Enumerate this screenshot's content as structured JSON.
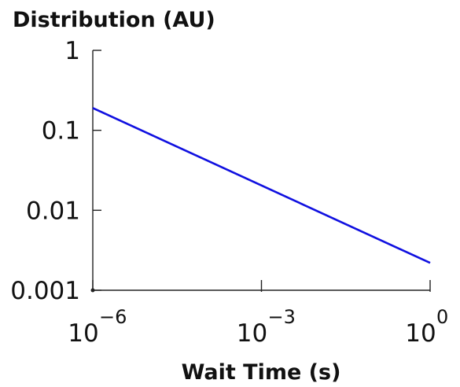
{
  "chart_data": {
    "type": "line",
    "title": "",
    "ylabel": "Distribution (AU)",
    "xlabel": "Wait Time (s)",
    "x_scale": "log",
    "y_scale": "log",
    "xlim": [
      1e-06,
      1
    ],
    "ylim": [
      0.001,
      1
    ],
    "x_ticks": [
      {
        "value": 1e-06,
        "base": "10",
        "exp": "−6"
      },
      {
        "value": 0.001,
        "base": "10",
        "exp": "−3"
      },
      {
        "value": 1,
        "base": "10",
        "exp": "0"
      }
    ],
    "y_ticks": [
      {
        "value": 1,
        "label": "1"
      },
      {
        "value": 0.1,
        "label": "0.1"
      },
      {
        "value": 0.01,
        "label": "0.01"
      },
      {
        "value": 0.001,
        "label": "0.001"
      }
    ],
    "grid": false,
    "series": [
      {
        "color": "#1010e0",
        "x": [
          1e-06,
          1
        ],
        "y": [
          0.19,
          0.0022
        ]
      }
    ]
  }
}
